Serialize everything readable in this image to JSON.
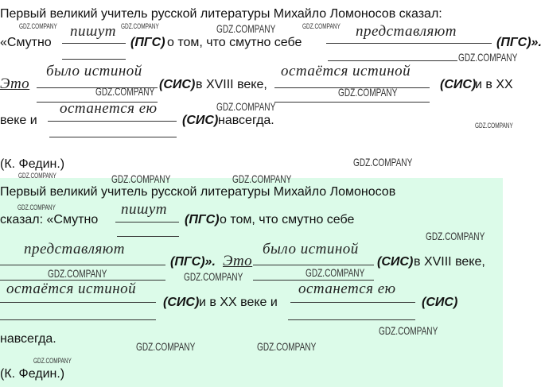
{
  "original": {
    "line1": "Первый великий учитель русской литературы Михайло Ломоносов сказал:",
    "smutno": "«Смутно",
    "ans1": "пишут",
    "tag_pgs": "(ПГС)",
    "o_tom": "о том, что смутно себе",
    "ans2": "представляют",
    "tag_pgs_end": "(ПГС)».",
    "eto": "Это",
    "ans3": "было истиной",
    "tag_sis": "(СИС)",
    "v18": "в XVIII веке,",
    "ans4": "остаётся истиной",
    "i_v20": "и в XX",
    "veke_i": "веке и",
    "ans5": "останется ею",
    "navsegda": "навсегда.",
    "author": "(К. Федин.)"
  },
  "answer": {
    "line1": "Первый великий учитель русской литературы Михайло Ломоносов",
    "skazal": "сказал: «Смутно",
    "ans1": "пишут",
    "tag_pgs": "(ПГС)",
    "o_tom": "о том, что смутно себе",
    "ans2": "представляют",
    "tag_pgs_end": "(ПГС)».",
    "eto": "Это",
    "ans3": "было истиной",
    "tag_sis": "(СИС)",
    "v18": "в XVIII веке,",
    "ans4": "остаётся истиной",
    "i_v20": "и в XX веке и",
    "ans5": "останется ею",
    "navsegda": "навсегда.",
    "author": "(К. Федин.)"
  },
  "watermark": "GDZ.COMPANY",
  "colors": {
    "answer_panel": "#dcfbe9"
  }
}
